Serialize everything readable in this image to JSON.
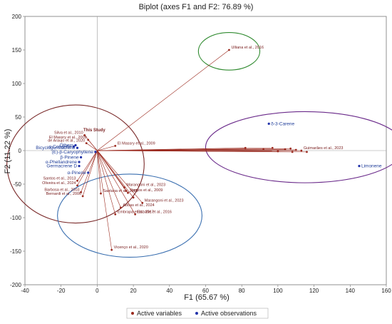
{
  "chart_data": {
    "type": "scatter",
    "title": "Biplot (axes F1 and F2: 76.89 %)",
    "xlabel": "F1 (65.67 %)",
    "ylabel": "F2 (11.22 %)",
    "xlim": [
      -40,
      160
    ],
    "ylim": [
      -200,
      200
    ],
    "xticks": [
      "-40",
      "-20",
      "0",
      "20",
      "40",
      "60",
      "80",
      "100",
      "120",
      "140",
      "160"
    ],
    "yticks": [
      "200",
      "150",
      "100",
      "50",
      "0",
      "-50",
      "-100",
      "-150",
      "-200"
    ],
    "origin_label": "This Study",
    "legend": {
      "placement": "bottom",
      "items": [
        {
          "name": "Active variables",
          "color": "#9b2a1f"
        },
        {
          "name": "Active observations",
          "color": "#2233aa"
        }
      ]
    },
    "active_variables": [
      {
        "label": "Ulliana et al., 2016",
        "x": 73,
        "y": 150
      },
      {
        "label": "Silva et al., 2010",
        "x": -7,
        "y": 23
      },
      {
        "label": "El Massry et al., 2009",
        "x": -5,
        "y": 16
      },
      {
        "label": "de Araujo et al., 2020",
        "x": -6,
        "y": 11
      },
      {
        "label": "El Massry et al., 2009",
        "x": 10,
        "y": 7
      },
      {
        "label": "Santos et al., 2013",
        "x": -11,
        "y": -45
      },
      {
        "label": "Oliveira et al., 2024",
        "x": -11,
        "y": -52
      },
      {
        "label": "Barbosa et al., 2003",
        "x": -9,
        "y": -62
      },
      {
        "label": "Bernardi et al., 2006",
        "x": -8,
        "y": -68
      },
      {
        "label": "Marangoni et al., 2023",
        "x": 15,
        "y": -55
      },
      {
        "label": "Santos et al., 2009",
        "x": 17,
        "y": -63
      },
      {
        "label": "Santana et al., 2009",
        "x": 2,
        "y": -64
      },
      {
        "label": "Marangoni et al., 2023",
        "x": 25,
        "y": -78
      },
      {
        "label": "Abbas et al., 2024",
        "x": 13,
        "y": -85
      },
      {
        "label": "Embrapa et al., 2017",
        "x": 10,
        "y": -95
      },
      {
        "label": "Elshafie et al., 2016",
        "x": 21,
        "y": -95
      },
      {
        "label": "Vicenço et al., 2020",
        "x": 8,
        "y": -148
      },
      {
        "label": "Guimarães et al., 2023",
        "x": 113,
        "y": 0
      },
      {
        "label": "",
        "x": 82,
        "y": 4
      },
      {
        "label": "",
        "x": 92,
        "y": 2
      },
      {
        "label": "",
        "x": 97,
        "y": 4
      },
      {
        "label": "",
        "x": 100,
        "y": -1
      },
      {
        "label": "",
        "x": 104,
        "y": 2
      },
      {
        "label": "",
        "x": 107,
        "y": 3
      },
      {
        "label": "",
        "x": 108,
        "y": -2
      },
      {
        "label": "",
        "x": 110,
        "y": 1
      },
      {
        "label": "",
        "x": 116,
        "y": -2
      },
      {
        "label": "",
        "x": 16,
        "y": -60
      },
      {
        "label": "",
        "x": 20,
        "y": -70
      }
    ],
    "active_observations": [
      {
        "label": "Others",
        "x": -12,
        "y": 8
      },
      {
        "label": "Bicyclogermacrene",
        "x": -11,
        "y": 4
      },
      {
        "label": "α-Copaene",
        "x": -13,
        "y": 6
      },
      {
        "label": "β-Pinene",
        "x": -9,
        "y": -10
      },
      {
        "label": "α-Phellandrene",
        "x": -10,
        "y": -17
      },
      {
        "label": "Germacrene D",
        "x": -10,
        "y": -23
      },
      {
        "label": "α-Pinene",
        "x": -5,
        "y": -33
      },
      {
        "label": "(E)-β-Caryophyllene",
        "x": -1,
        "y": -2
      },
      {
        "label": "δ-3-Carene",
        "x": 95,
        "y": 40
      },
      {
        "label": "Limonene",
        "x": 145,
        "y": -23
      }
    ],
    "ellipses": [
      {
        "color": "#2f8a2f",
        "cx": 73,
        "cy": 148,
        "rx": 17,
        "ry": 28
      },
      {
        "color": "#7a2a2a",
        "cx": -12,
        "cy": -20,
        "rx": 38,
        "ry": 88
      },
      {
        "color": "#3a6fb0",
        "cx": 18,
        "cy": -97,
        "rx": 40,
        "ry": 62
      },
      {
        "color": "#6a2a8a",
        "cx": 115,
        "cy": 5,
        "rx": 55,
        "ry": 53
      }
    ]
  }
}
